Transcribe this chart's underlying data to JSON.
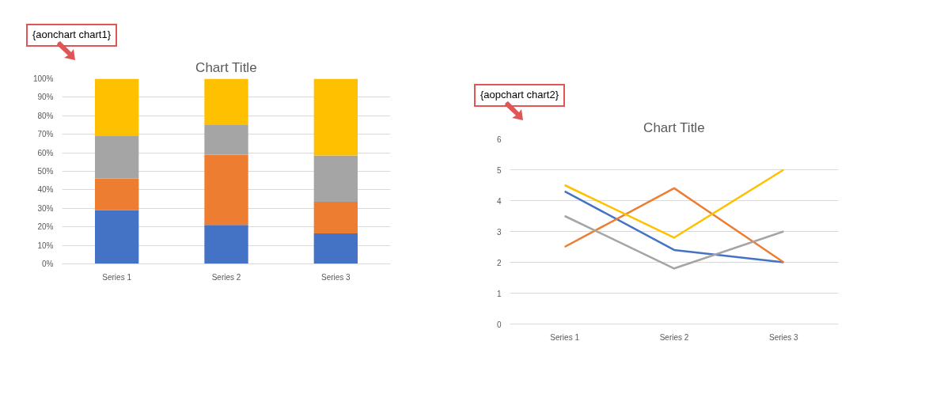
{
  "chart_data": [
    {
      "type": "bar",
      "stacked": true,
      "title": "Chart Title",
      "annotations": [
        "{aonchart chart1}"
      ],
      "categories": [
        "Series 1",
        "Series 2",
        "Series 3"
      ],
      "series": [
        {
          "color": "#4472c4",
          "values": [
            29,
            21,
            16.5
          ]
        },
        {
          "color": "#ed7d31",
          "values": [
            17,
            38,
            17
          ]
        },
        {
          "color": "#a5a5a5",
          "values": [
            23,
            16,
            25
          ]
        },
        {
          "color": "#ffc000",
          "values": [
            31,
            25,
            41.5
          ]
        }
      ],
      "ylim": [
        0,
        100
      ],
      "yticks": [
        {
          "value": 0,
          "label": "0%"
        },
        {
          "value": 10,
          "label": "10%"
        },
        {
          "value": 20,
          "label": "20%"
        },
        {
          "value": 30,
          "label": "30%"
        },
        {
          "value": 40,
          "label": "40%"
        },
        {
          "value": 50,
          "label": "50%"
        },
        {
          "value": 60,
          "label": "60%"
        },
        {
          "value": 70,
          "label": "70%"
        },
        {
          "value": 80,
          "label": "80%"
        },
        {
          "value": 90,
          "label": "90%"
        },
        {
          "value": 100,
          "label": "100%"
        }
      ],
      "grid": "y"
    },
    {
      "type": "line",
      "title": "Chart Title",
      "annotations": [
        "{aopchart chart2}"
      ],
      "categories": [
        "Series 1",
        "Series 2",
        "Series 3"
      ],
      "series": [
        {
          "color": "#4472c4",
          "values": [
            4.3,
            2.4,
            2.0
          ]
        },
        {
          "color": "#ed7d31",
          "values": [
            2.5,
            4.4,
            2.0
          ]
        },
        {
          "color": "#a5a5a5",
          "values": [
            3.5,
            1.8,
            3.0
          ]
        },
        {
          "color": "#ffc000",
          "values": [
            4.5,
            2.8,
            5.0
          ]
        }
      ],
      "ylim": [
        0,
        6
      ],
      "yticks": [
        0,
        1,
        2,
        3,
        4,
        5,
        6
      ],
      "grid": "y"
    }
  ]
}
